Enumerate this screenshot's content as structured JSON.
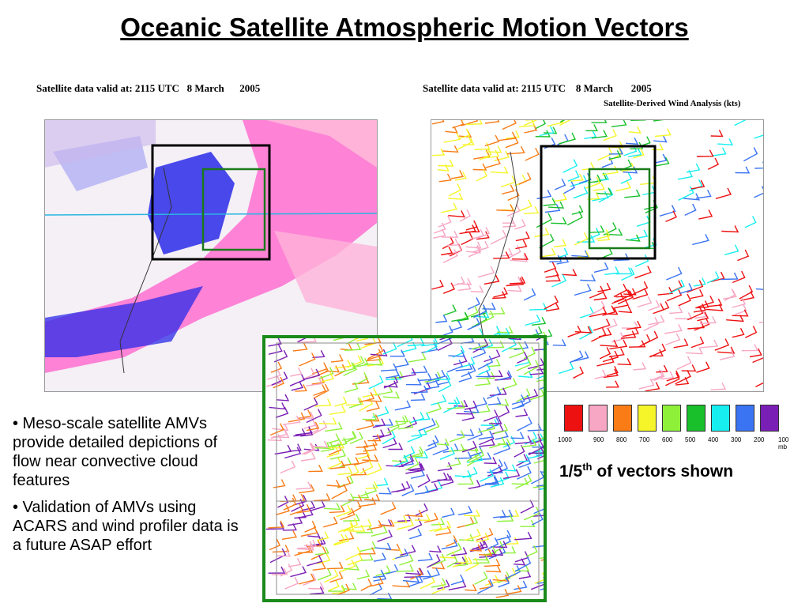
{
  "title": "Oceanic Satellite Atmospheric Motion Vectors",
  "left_panel": {
    "caption": "Satellite data valid at: 2115 UTC   8 March      2005"
  },
  "right_panel": {
    "caption": "Satellite data valid at: 2115 UTC    8 March       2005",
    "subcaption": "Satellite-Derived Wind Analysis (kts)"
  },
  "bullets": [
    "• Meso-scale satellite AMVs provide detailed depictions of flow near convective cloud features",
    "• Validation of AMVs using ACARS and wind profiler data is a future ASAP effort"
  ],
  "legend": {
    "colors": [
      "#ee1111",
      "#f7a6c4",
      "#f97c16",
      "#f5f52a",
      "#8ff03a",
      "#19c02c",
      "#17eef0",
      "#3b74f2",
      "#7a1fb5"
    ],
    "levels": [
      "1000",
      "900",
      "800",
      "700",
      "600",
      "500",
      "400",
      "300",
      "200",
      "100 mb"
    ]
  },
  "note": {
    "prefix": "1/5",
    "sup": "th",
    "suffix": " of vectors shown"
  }
}
